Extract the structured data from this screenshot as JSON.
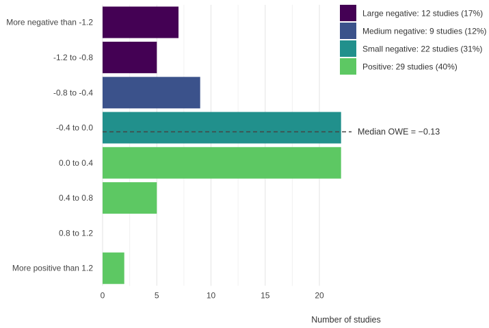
{
  "chart_data": {
    "type": "bar",
    "orientation": "horizontal",
    "xlabel": "Number of studies",
    "ylabel": "",
    "xlim": [
      0,
      22
    ],
    "xticks": [
      0,
      5,
      10,
      15,
      20
    ],
    "grid": true,
    "categories": [
      "More negative than -1.2",
      "-1.2  to -0.8",
      "-0.8  to -0.4",
      "-0.4  to  0.0",
      "0.0  to  0.4",
      "0.4  to  0.8",
      "0.8  to  1.2",
      "More positive than 1.2"
    ],
    "values": [
      7,
      5,
      9,
      22,
      22,
      5,
      0,
      2
    ],
    "groups": [
      "Large negative",
      "Large negative",
      "Medium negative",
      "Small negative",
      "Positive",
      "Positive",
      "Positive",
      "Positive"
    ],
    "legend_position": "top-right",
    "legend": [
      {
        "group": "Large negative",
        "label": "Large negative: 12 studies (17%)",
        "color": "#440154"
      },
      {
        "group": "Medium negative",
        "label": "Medium negative: 9 studies (12%)",
        "color": "#3B528B"
      },
      {
        "group": "Small negative",
        "label": "Small negative: 22 studies (31%)",
        "color": "#21908C"
      },
      {
        "group": "Positive",
        "label": "Positive: 29 studies (40%)",
        "color": "#5DC863"
      }
    ],
    "median": {
      "label": "Median OWE = −0.13",
      "value": -0.13,
      "line_style": "dashed",
      "line_color": "#444444"
    }
  }
}
